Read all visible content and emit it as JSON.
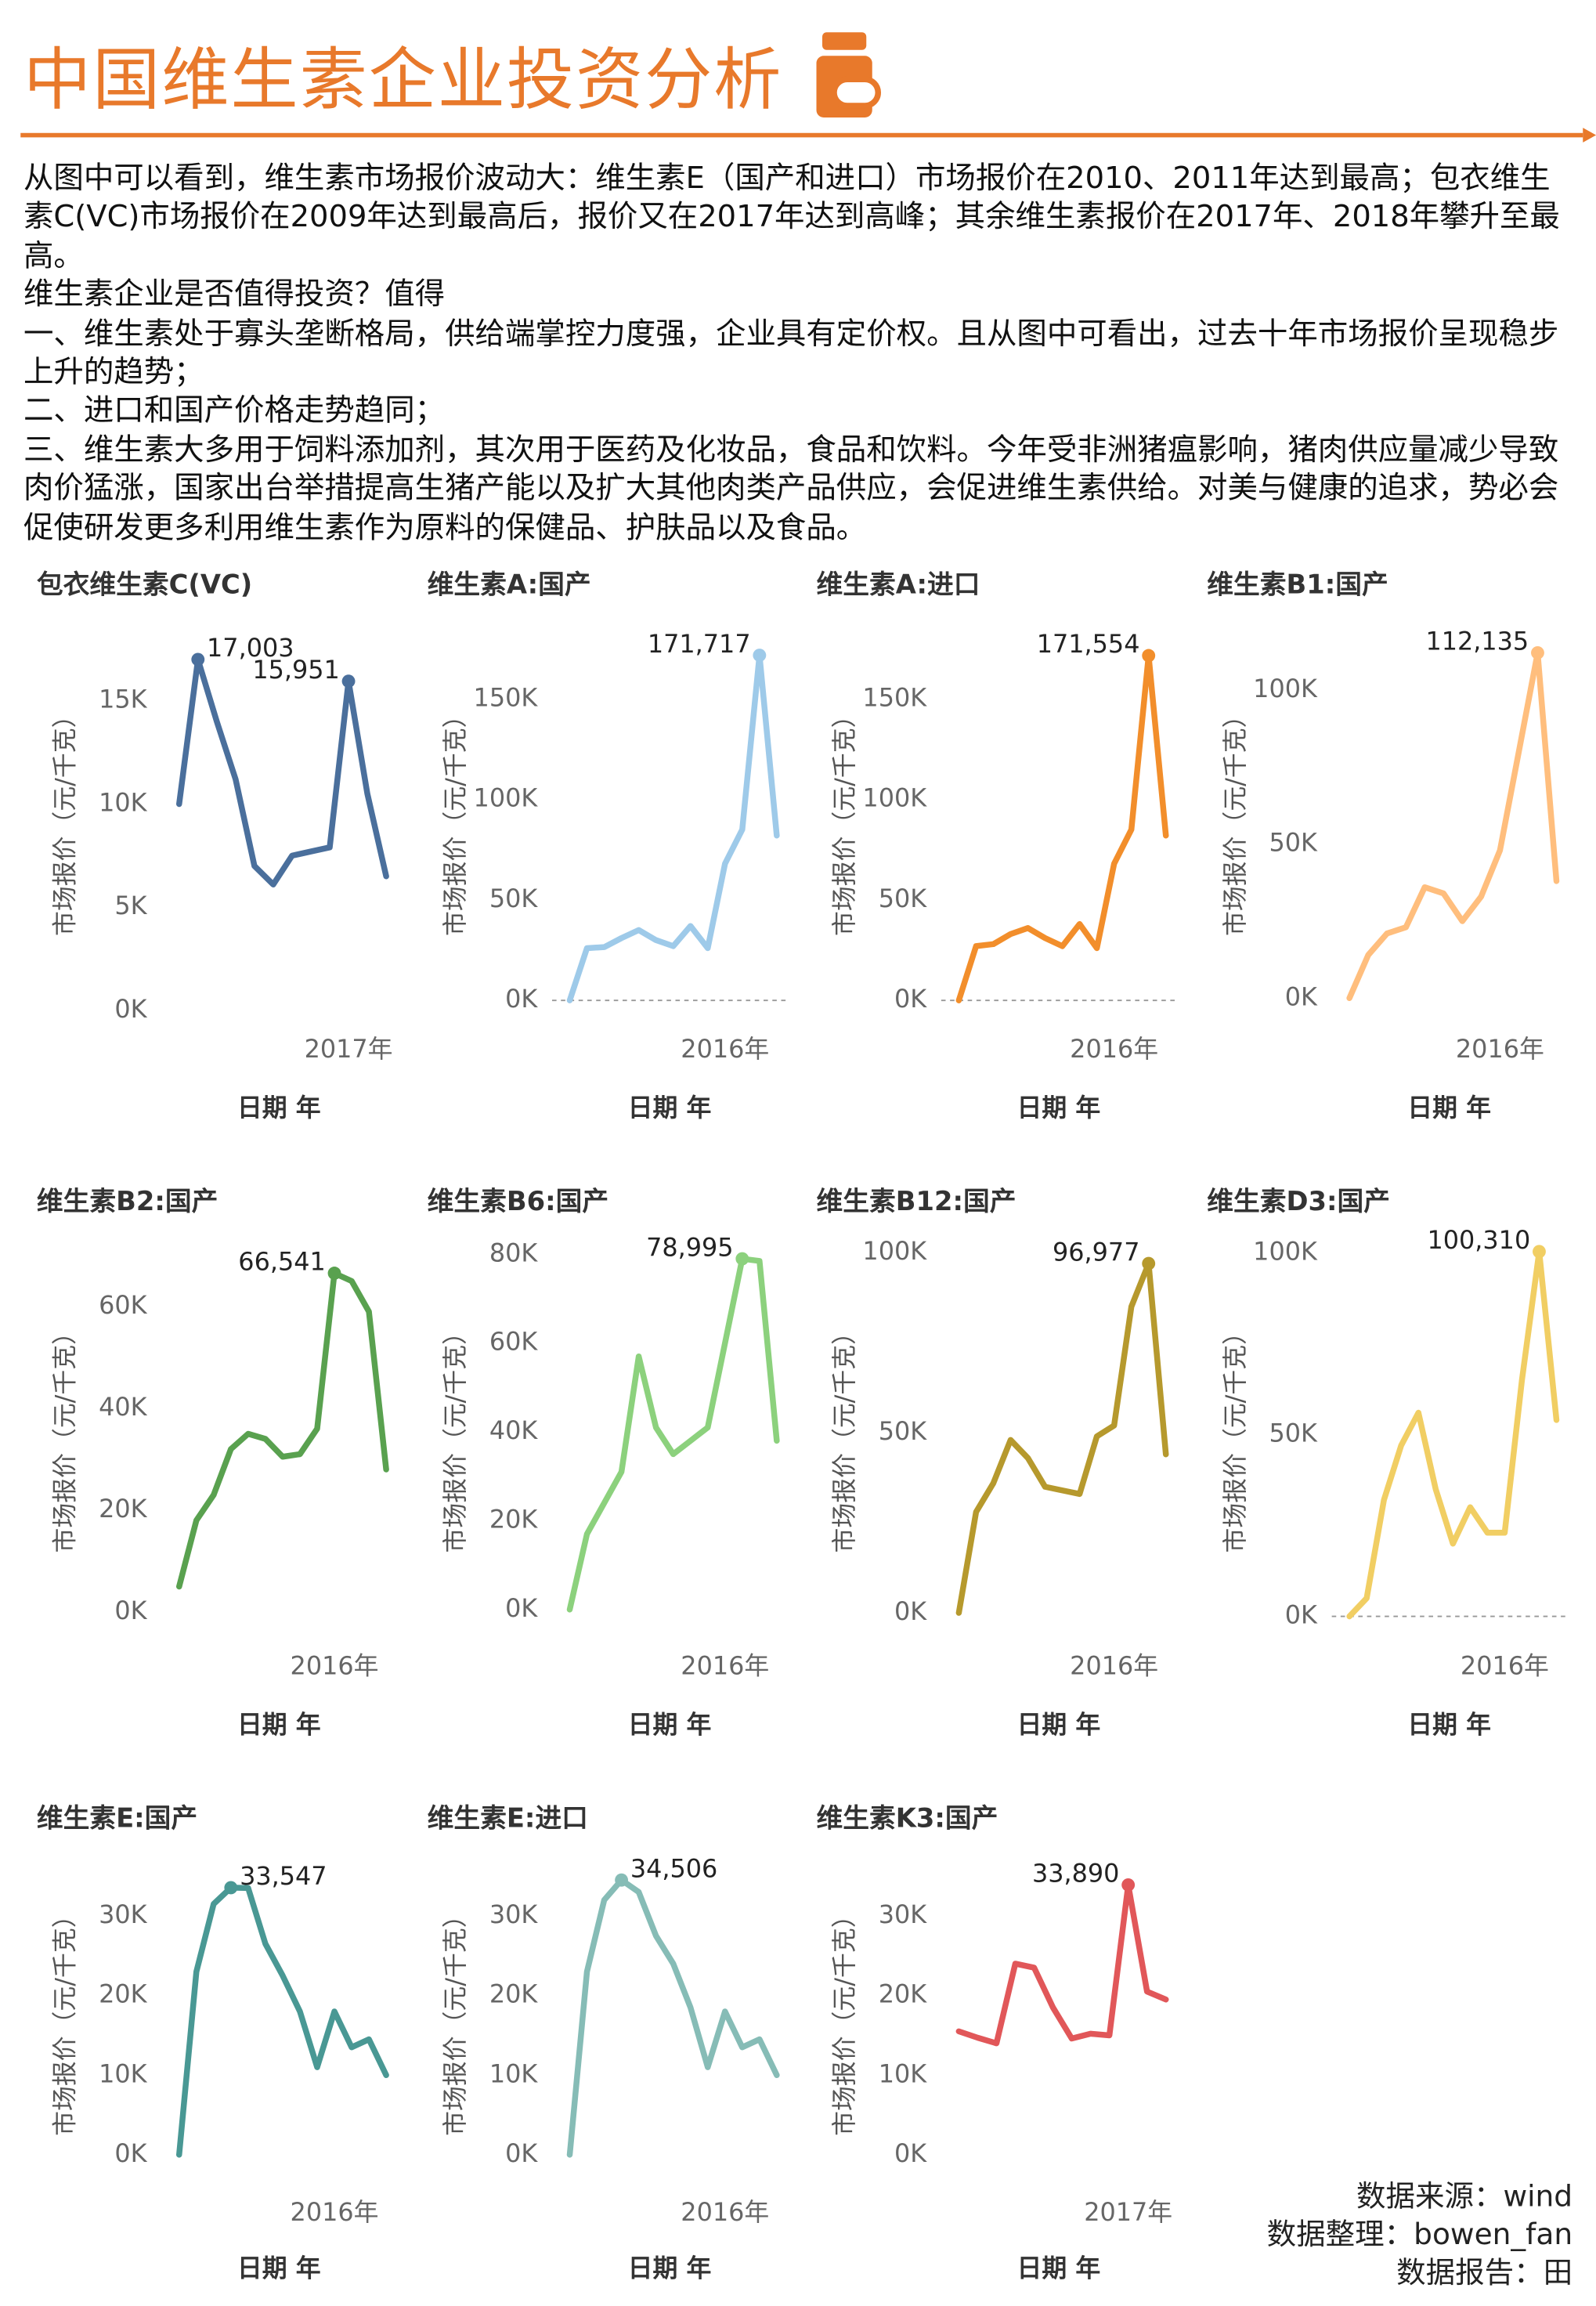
{
  "header": {
    "title": "中国维生素企业投资分析"
  },
  "text": [
    "从图中可以看到，维生素市场报价波动大：维生素E（国产和进口）市场报价在2010、2011年达到最高；包衣维生素C(VC)市场报价在2009年达到最高后，报价又在2017年达到高峰；其余维生素报价在2017年、2018年攀升至最高。",
    "维生素企业是否值得投资？值得",
    "一、维生素处于寡头垄断格局，供给端掌控力度强，企业具有定价权。且从图中可看出，过去十年市场报价呈现稳步上升的趋势；",
    "二、进口和国产价格走势趋同；",
    "三、维生素大多用于饲料添加剂，其次用于医药及化妆品，食品和饮料。今年受非洲猪瘟影响，猪肉供应量减少导致肉价猛涨，国家出台举措提高生猪产能以及扩大其他肉类产品供应，会促进维生素供给。对美与健康的追求，势必会促使研发更多利用维生素作为原料的保健品、护肤品以及食品。"
  ],
  "chart_data": [
    {
      "type": "line",
      "title": "包衣维生素C(VC)",
      "ylabel": "市场报价（元/千克）",
      "xlabel": "日期 年",
      "color": "#4a6f9c",
      "categories": [
        null,
        null,
        null,
        null,
        null,
        null,
        null,
        null,
        null,
        "2017年",
        null,
        null
      ],
      "values": [
        10000,
        17003,
        14000,
        11200,
        7000,
        6100,
        7500,
        7700,
        7900,
        15951,
        10500,
        6500
      ],
      "value_labels": [
        null,
        "17,003",
        null,
        null,
        null,
        null,
        null,
        null,
        null,
        "15,951",
        null,
        null
      ],
      "ylim": [
        0,
        18500
      ],
      "yticks": [
        {
          "value": 0,
          "label": "0K"
        },
        {
          "value": 5000,
          "label": "5K"
        },
        {
          "value": 10000,
          "label": "10K"
        },
        {
          "value": 15000,
          "label": "15K"
        }
      ],
      "zero_line": false
    },
    {
      "type": "line",
      "title": "维生素A:国产",
      "ylabel": "市场报价（元/千克）",
      "xlabel": "日期 年",
      "color": "#9ecae9",
      "categories": [
        null,
        null,
        null,
        null,
        null,
        null,
        null,
        null,
        null,
        "2016年",
        null,
        null,
        null
      ],
      "values": [
        0,
        26000,
        26500,
        31000,
        35000,
        30000,
        27000,
        37000,
        26000,
        68000,
        85000,
        171717,
        82000
      ],
      "value_labels": [
        null,
        null,
        null,
        null,
        null,
        null,
        null,
        null,
        null,
        null,
        null,
        "171,717",
        null
      ],
      "ylim": [
        -5000,
        185000
      ],
      "yticks": [
        {
          "value": 0,
          "label": "0K"
        },
        {
          "value": 50000,
          "label": "50K"
        },
        {
          "value": 100000,
          "label": "100K"
        },
        {
          "value": 150000,
          "label": "150K"
        }
      ],
      "zero_line": true
    },
    {
      "type": "line",
      "title": "维生素A:进口",
      "ylabel": "市场报价（元/千克）",
      "xlabel": "日期 年",
      "color": "#f28e2b",
      "categories": [
        null,
        null,
        null,
        null,
        null,
        null,
        null,
        null,
        null,
        "2016年",
        null,
        null,
        null
      ],
      "values": [
        0,
        27000,
        28000,
        33000,
        36000,
        31000,
        27000,
        38000,
        26000,
        68000,
        85000,
        171554,
        82000
      ],
      "value_labels": [
        null,
        null,
        null,
        null,
        null,
        null,
        null,
        null,
        null,
        null,
        null,
        "171,554",
        null
      ],
      "ylim": [
        -5000,
        185000
      ],
      "yticks": [
        {
          "value": 0,
          "label": "0K"
        },
        {
          "value": 50000,
          "label": "50K"
        },
        {
          "value": 100000,
          "label": "100K"
        },
        {
          "value": 150000,
          "label": "150K"
        }
      ],
      "zero_line": true
    },
    {
      "type": "line",
      "title": "维生素B1:国产",
      "ylabel": "市场报价（元/千克）",
      "xlabel": "日期 年",
      "color": "#ffbe7d",
      "categories": [
        null,
        null,
        null,
        null,
        null,
        null,
        null,
        null,
        "2016年",
        null,
        null,
        null
      ],
      "values": [
        0,
        14000,
        21000,
        23000,
        36000,
        34000,
        25000,
        33000,
        48000,
        80000,
        112135,
        38000
      ],
      "value_labels": [
        null,
        null,
        null,
        null,
        null,
        null,
        null,
        null,
        null,
        null,
        "112,135",
        null
      ],
      "ylim": [
        -4000,
        120000
      ],
      "yticks": [
        {
          "value": 0,
          "label": "0K"
        },
        {
          "value": 50000,
          "label": "50K"
        },
        {
          "value": 100000,
          "label": "100K"
        }
      ],
      "zero_line": false
    },
    {
      "type": "line",
      "title": "维生素B2:国产",
      "ylabel": "市场报价（元/千克）",
      "xlabel": "日期 年",
      "color": "#59a14f",
      "categories": [
        null,
        null,
        null,
        null,
        null,
        null,
        null,
        null,
        null,
        "2016年",
        null,
        null,
        null
      ],
      "values": [
        5000,
        18000,
        23000,
        32000,
        35000,
        34000,
        30500,
        31000,
        36000,
        66541,
        65000,
        59000,
        28000
      ],
      "value_labels": [
        null,
        null,
        null,
        null,
        null,
        null,
        null,
        null,
        null,
        "66,541",
        null,
        null,
        null
      ],
      "ylim": [
        -3000,
        72000
      ],
      "yticks": [
        {
          "value": 0,
          "label": "0K"
        },
        {
          "value": 20000,
          "label": "20K"
        },
        {
          "value": 40000,
          "label": "40K"
        },
        {
          "value": 60000,
          "label": "60K"
        }
      ],
      "zero_line": false
    },
    {
      "type": "line",
      "title": "维生素B6:国产",
      "ylabel": "市场报价（元/千克）",
      "xlabel": "日期 年",
      "color": "#8cd17d",
      "categories": [
        null,
        null,
        null,
        null,
        null,
        null,
        null,
        null,
        null,
        "2016年",
        null,
        null,
        null
      ],
      "values": [
        0,
        17000,
        24000,
        31000,
        57000,
        41000,
        35000,
        38000,
        41000,
        60000,
        78995,
        78500,
        38000
      ],
      "value_labels": [
        null,
        null,
        null,
        null,
        null,
        null,
        null,
        null,
        null,
        null,
        "78,995",
        null,
        null
      ],
      "ylim": [
        -4000,
        82000
      ],
      "yticks": [
        {
          "value": 0,
          "label": "0K"
        },
        {
          "value": 20000,
          "label": "20K"
        },
        {
          "value": 40000,
          "label": "40K"
        },
        {
          "value": 60000,
          "label": "60K"
        },
        {
          "value": 80000,
          "label": "80K"
        }
      ],
      "zero_line": false
    },
    {
      "type": "line",
      "title": "维生素B12:国产",
      "ylabel": "市场报价（元/千克）",
      "xlabel": "日期 年",
      "color": "#b6992d",
      "categories": [
        null,
        null,
        null,
        null,
        null,
        null,
        null,
        null,
        null,
        "2016年",
        null,
        null,
        null
      ],
      "values": [
        0,
        28000,
        36000,
        48000,
        43000,
        35000,
        34000,
        33000,
        49000,
        52000,
        85000,
        96977,
        44000
      ],
      "value_labels": [
        null,
        null,
        null,
        null,
        null,
        null,
        null,
        null,
        null,
        null,
        null,
        "96,977",
        null
      ],
      "ylim": [
        -4000,
        102000
      ],
      "yticks": [
        {
          "value": 0,
          "label": "0K"
        },
        {
          "value": 50000,
          "label": "50K"
        },
        {
          "value": 100000,
          "label": "100K"
        }
      ],
      "zero_line": false
    },
    {
      "type": "line",
      "title": "维生素D3:国产",
      "ylabel": "市场报价（元/千克）",
      "xlabel": "日期 年",
      "color": "#f1ce63",
      "categories": [
        null,
        null,
        null,
        null,
        null,
        null,
        null,
        null,
        null,
        "2016年",
        null,
        null,
        null
      ],
      "values": [
        0,
        5000,
        32000,
        47000,
        56000,
        35000,
        20000,
        30000,
        23000,
        23000,
        65000,
        100310,
        54000
      ],
      "value_labels": [
        null,
        null,
        null,
        null,
        null,
        null,
        null,
        null,
        null,
        null,
        null,
        "100,310",
        null
      ],
      "ylim": [
        -3000,
        102000
      ],
      "yticks": [
        {
          "value": 0,
          "label": "0K"
        },
        {
          "value": 50000,
          "label": "50K"
        },
        {
          "value": 100000,
          "label": "100K"
        }
      ],
      "zero_line": true
    },
    {
      "type": "line",
      "title": "维生素E:国产",
      "ylabel": "市场报价（元/千克）",
      "xlabel": "日期 年",
      "color": "#499894",
      "categories": [
        null,
        null,
        null,
        null,
        null,
        null,
        null,
        null,
        null,
        "2016年",
        null,
        null,
        null
      ],
      "values": [
        0,
        23000,
        31500,
        33547,
        33500,
        26500,
        22500,
        18000,
        11000,
        18000,
        13500,
        14500,
        10000
      ],
      "value_labels": [
        null,
        null,
        null,
        "33,547",
        null,
        null,
        null,
        null,
        null,
        null,
        null,
        null,
        null
      ],
      "ylim": [
        -2000,
        36000
      ],
      "yticks": [
        {
          "value": 0,
          "label": "0K"
        },
        {
          "value": 10000,
          "label": "10K"
        },
        {
          "value": 20000,
          "label": "20K"
        },
        {
          "value": 30000,
          "label": "30K"
        }
      ],
      "zero_line": false
    },
    {
      "type": "line",
      "title": "维生素E:进口",
      "ylabel": "市场报价（元/千克）",
      "xlabel": "日期 年",
      "color": "#86bcb6",
      "categories": [
        null,
        null,
        null,
        null,
        null,
        null,
        null,
        null,
        null,
        "2016年",
        null,
        null,
        null
      ],
      "values": [
        0,
        23000,
        32000,
        34506,
        33000,
        27500,
        24000,
        18500,
        11000,
        18000,
        13500,
        14500,
        10000
      ],
      "value_labels": [
        null,
        null,
        null,
        "34,506",
        null,
        null,
        null,
        null,
        null,
        null,
        null,
        null,
        null
      ],
      "ylim": [
        -2000,
        36000
      ],
      "yticks": [
        {
          "value": 0,
          "label": "0K"
        },
        {
          "value": 10000,
          "label": "10K"
        },
        {
          "value": 20000,
          "label": "20K"
        },
        {
          "value": 30000,
          "label": "30K"
        }
      ],
      "zero_line": false
    },
    {
      "type": "line",
      "title": "维生素K3:国产",
      "ylabel": "市场报价（元/千克）",
      "xlabel": "日期 年",
      "color": "#e15759",
      "categories": [
        null,
        null,
        null,
        null,
        null,
        null,
        null,
        null,
        null,
        "2017年",
        null,
        null
      ],
      "values": [
        15500,
        14700,
        14000,
        24000,
        23500,
        18500,
        14600,
        15200,
        15000,
        33890,
        20500,
        19500
      ],
      "value_labels": [
        null,
        null,
        null,
        null,
        null,
        null,
        null,
        null,
        null,
        "33,890",
        null,
        null
      ],
      "ylim": [
        -2000,
        36000
      ],
      "yticks": [
        {
          "value": 0,
          "label": "0K"
        },
        {
          "value": 10000,
          "label": "10K"
        },
        {
          "value": 20000,
          "label": "20K"
        },
        {
          "value": 30000,
          "label": "30K"
        }
      ],
      "zero_line": false
    }
  ],
  "footer": [
    "数据来源：wind",
    "数据整理：bowen_fan",
    "数据报告：田"
  ]
}
